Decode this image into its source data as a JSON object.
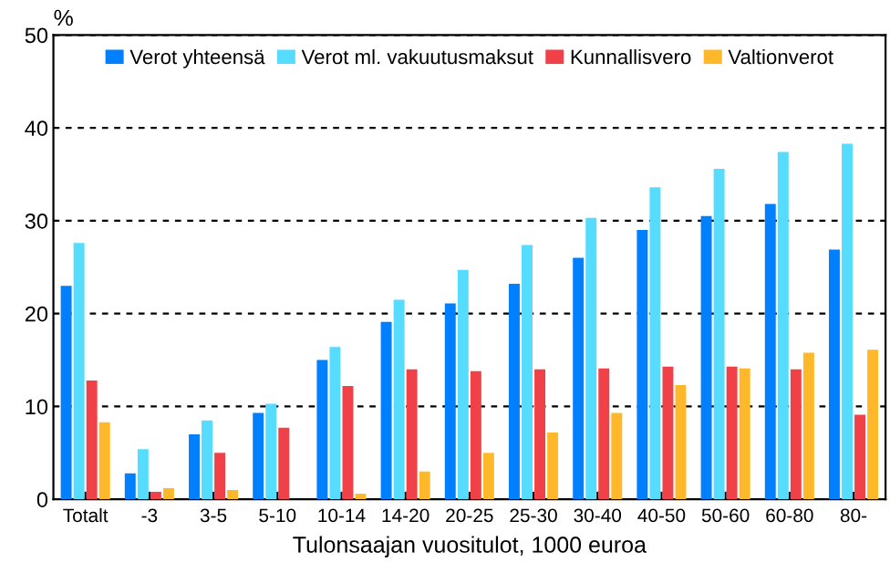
{
  "chart_data": {
    "type": "bar",
    "ylabel": "%",
    "xlabel": "Tulonsaajan vuositulot, 1000 euroa",
    "categories": [
      "Totalt",
      "-3",
      "3-5",
      "5-10",
      "10-14",
      "14-20",
      "20-25",
      "25-30",
      "30-40",
      "40-50",
      "50-60",
      "60-80",
      "80-"
    ],
    "series": [
      {
        "name": "Verot yhteensä",
        "color": "#0080ff",
        "values": [
          23.0,
          2.8,
          7.0,
          9.3,
          15.0,
          19.1,
          21.1,
          23.2,
          26.0,
          29.0,
          30.5,
          31.8,
          26.9
        ]
      },
      {
        "name": "Verot ml. vakuutusmaksut",
        "color": "#55dcff",
        "values": [
          27.6,
          5.4,
          8.5,
          10.3,
          16.4,
          21.5,
          24.7,
          27.4,
          30.3,
          33.6,
          35.6,
          37.4,
          38.3
        ]
      },
      {
        "name": "Kunnallisvero",
        "color": "#f04048",
        "values": [
          12.8,
          0.8,
          5.0,
          7.7,
          12.2,
          14.0,
          13.8,
          14.0,
          14.1,
          14.3,
          14.3,
          14.0,
          9.1
        ]
      },
      {
        "name": "Valtionverot",
        "color": "#ffb82a",
        "values": [
          8.3,
          1.2,
          1.0,
          null,
          0.6,
          3.0,
          5.0,
          7.2,
          9.3,
          12.3,
          14.1,
          15.8,
          16.1
        ]
      }
    ],
    "ylim": [
      0,
      50
    ],
    "yticks": [
      0,
      10,
      20,
      30,
      40,
      50
    ],
    "grid": "y",
    "legend": "top"
  }
}
